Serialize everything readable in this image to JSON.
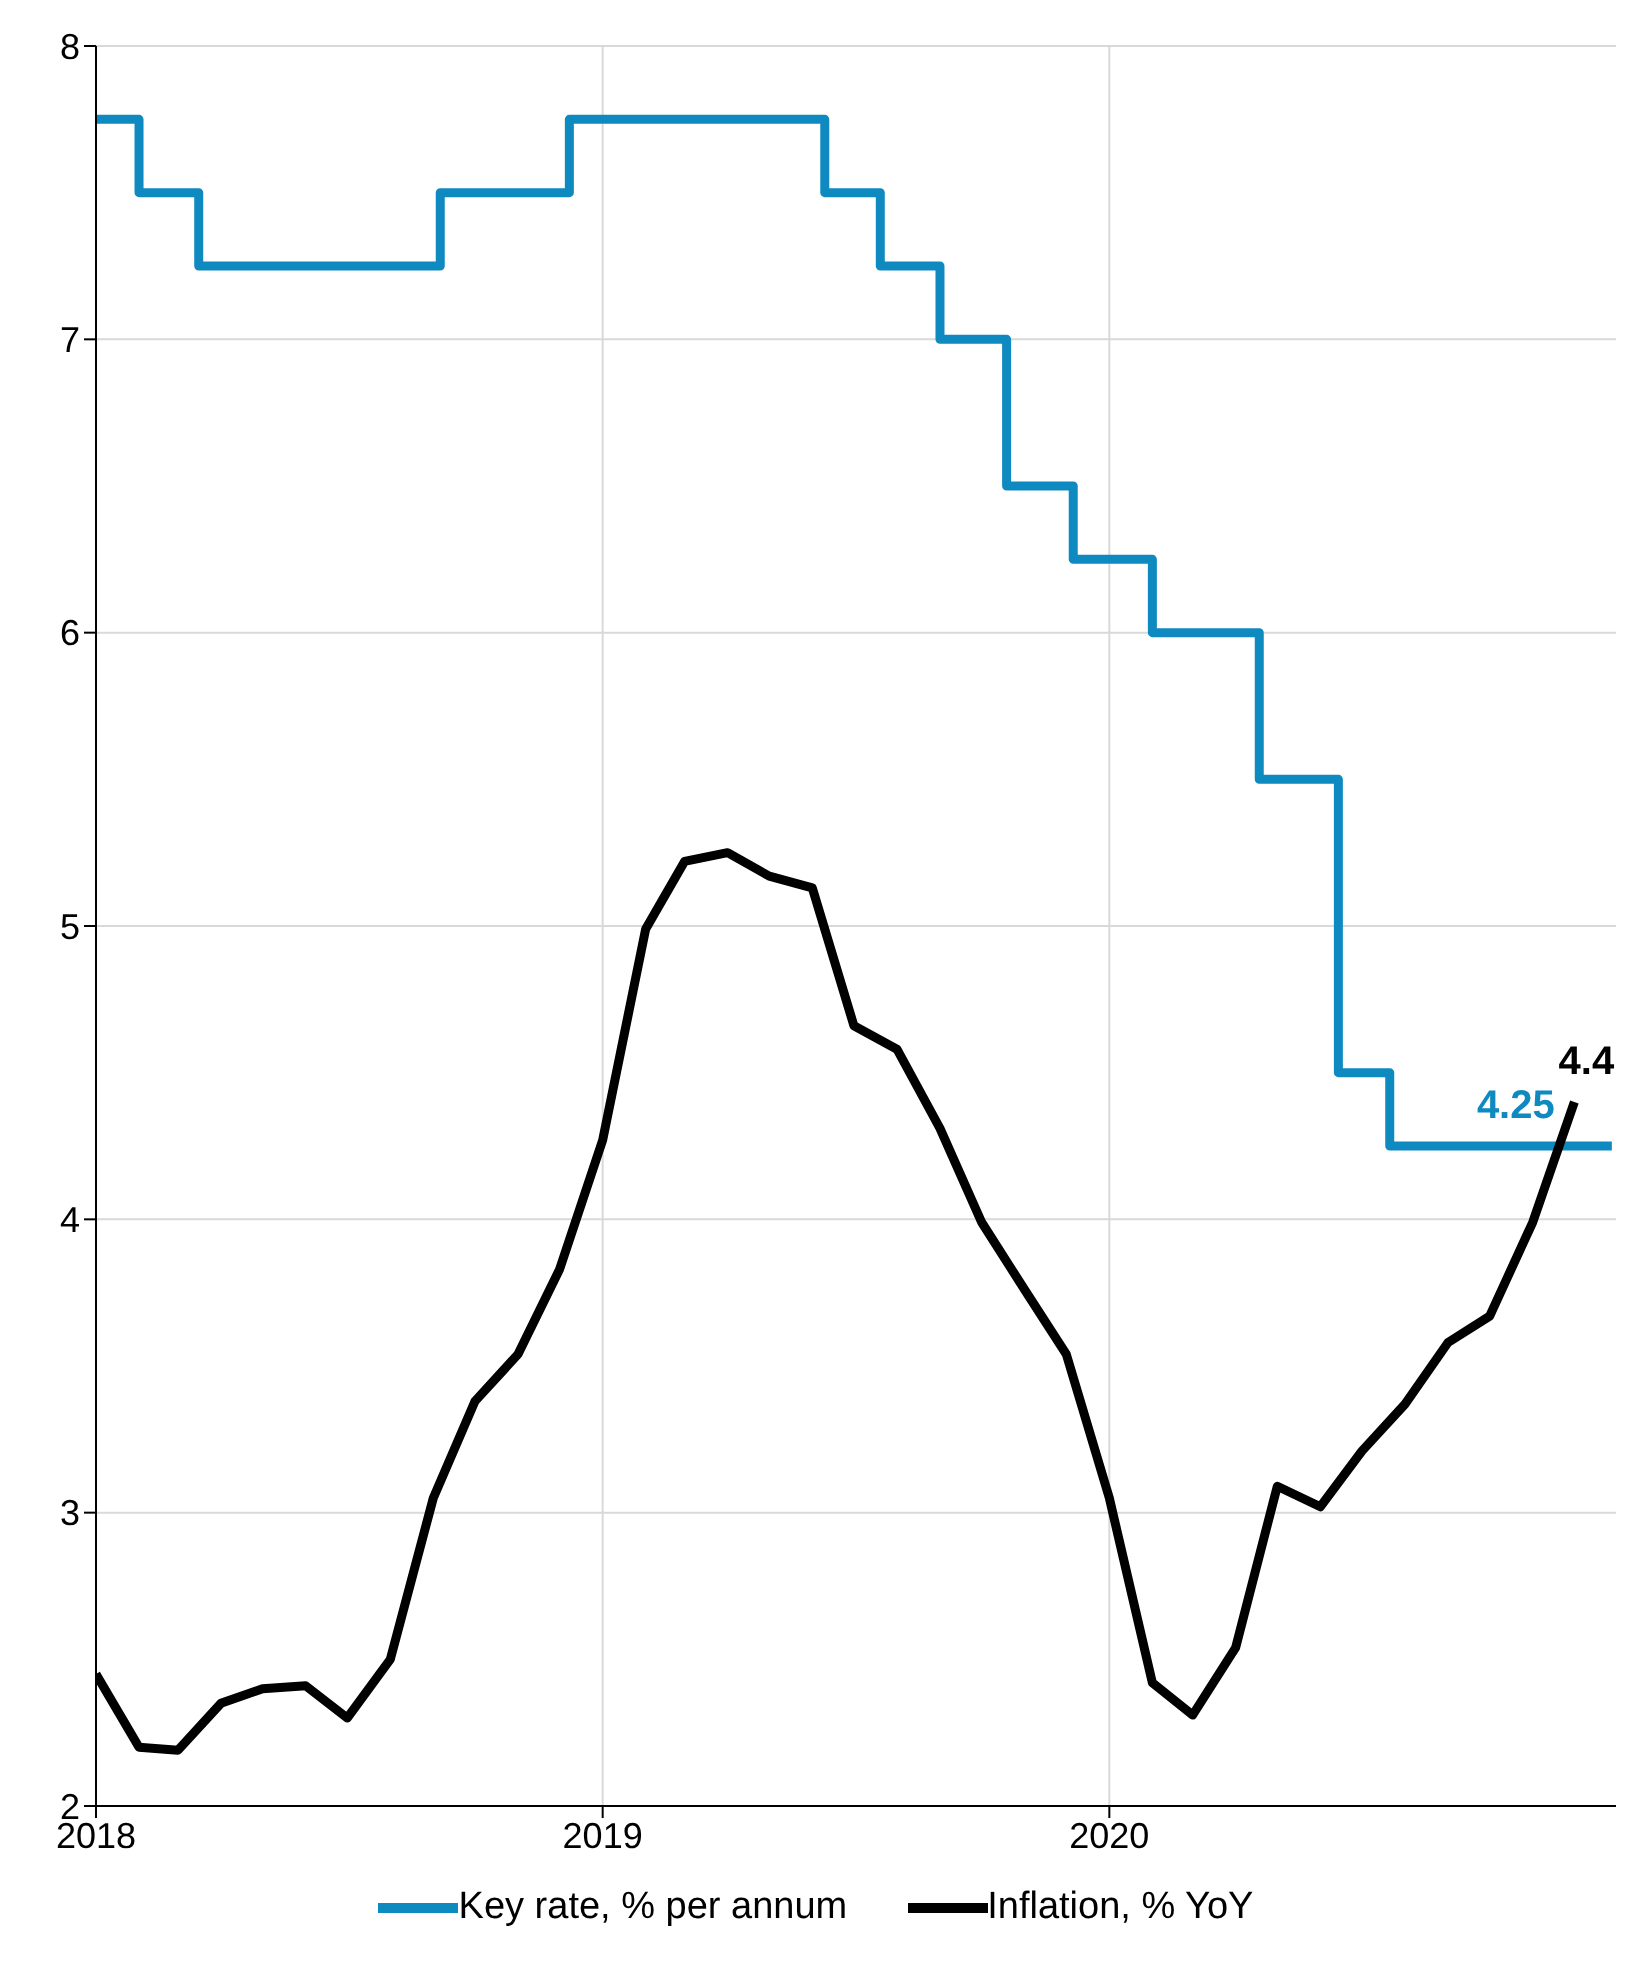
{
  "chart_data": {
    "type": "line",
    "xlim": [
      "2018-01-01",
      "2020-12-31"
    ],
    "xticks": [
      "2018",
      "2019",
      "2020"
    ],
    "ylim": [
      2,
      8
    ],
    "yticks": [
      2,
      3,
      4,
      5,
      6,
      7,
      8
    ],
    "grid": true,
    "legend": "bottom",
    "marker": "none",
    "line_style": "solid",
    "series": [
      {
        "name": "Key rate, % per annum",
        "type": "step",
        "color": "#0e8ac0",
        "x": [
          "2018-01-01",
          "2018-02-01",
          "2018-03-16",
          "2018-09-06",
          "2018-12-08",
          "2019-06-10",
          "2019-07-20",
          "2019-09-01",
          "2019-10-19",
          "2019-12-06",
          "2020-02-01",
          "2020-04-18",
          "2020-06-14",
          "2020-07-21",
          "2020-12-28"
        ],
        "values": [
          7.75,
          7.5,
          7.25,
          7.5,
          7.75,
          7.5,
          7.25,
          7.0,
          6.5,
          6.25,
          6.0,
          5.5,
          4.5,
          4.25,
          4.25
        ],
        "value_labels": [
          null,
          null,
          null,
          null,
          null,
          null,
          null,
          null,
          null,
          null,
          null,
          null,
          null,
          null,
          "4.25"
        ]
      },
      {
        "name": "Inflation, % YoY",
        "type": "line",
        "color": "#000000",
        "x": [
          "2018-01",
          "2018-02",
          "2018-03",
          "2018-04",
          "2018-05",
          "2018-06",
          "2018-07",
          "2018-08",
          "2018-09",
          "2018-10",
          "2018-11",
          "2018-12",
          "2019-01",
          "2019-02",
          "2019-03",
          "2019-04",
          "2019-05",
          "2019-06",
          "2019-07",
          "2019-08",
          "2019-09",
          "2019-10",
          "2019-11",
          "2019-12",
          "2020-01",
          "2020-02",
          "2020-03",
          "2020-04",
          "2020-05",
          "2020-06",
          "2020-07",
          "2020-08",
          "2020-09",
          "2020-10",
          "2020-11",
          "2020-12"
        ],
        "values": [
          2.45,
          2.2,
          2.19,
          2.35,
          2.4,
          2.41,
          2.3,
          2.5,
          3.05,
          3.38,
          3.54,
          3.83,
          4.27,
          4.99,
          5.22,
          5.25,
          5.17,
          5.13,
          4.66,
          4.58,
          4.31,
          3.99,
          3.76,
          3.54,
          3.05,
          2.42,
          2.31,
          2.54,
          3.09,
          3.02,
          3.21,
          3.37,
          3.58,
          3.67,
          3.99,
          4.4
        ],
        "value_labels": [
          null,
          null,
          null,
          null,
          null,
          null,
          null,
          null,
          null,
          null,
          null,
          null,
          null,
          null,
          null,
          null,
          null,
          null,
          null,
          null,
          null,
          null,
          null,
          null,
          null,
          null,
          null,
          null,
          null,
          null,
          null,
          null,
          null,
          null,
          null,
          "4.4"
        ]
      }
    ]
  }
}
